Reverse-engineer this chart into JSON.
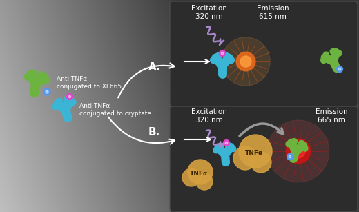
{
  "green_ab_color": "#6db33f",
  "blue_ab_color": "#3ab5d5",
  "blue_dot_color": "#5599ee",
  "pink_dot_color": "#dd44cc",
  "orange_glow_color": "#e87820",
  "red_glow_color": "#cc1515",
  "tnf_color": "#d4a040",
  "wave_color": "#aa88cc",
  "text_color": "#ffffff",
  "label_A": "A.",
  "label_B": "B.",
  "excitation_A_text": "Excitation\n320 nm",
  "emission_A_text": "Emission\n615 nm",
  "excitation_B_text": "Excitation\n320 nm",
  "emission_B_text": "Emission\n665 nm",
  "anti_xl665_text": "Anti TNFα\nconjugated to XL665",
  "anti_crypt_text": "Anti TNFα\nconjugated to cryptate",
  "tnf_label": "TNFα",
  "tnf_label2": "TNFα",
  "panel_dark": "#2c2c2c",
  "panel_edge": "#505050"
}
